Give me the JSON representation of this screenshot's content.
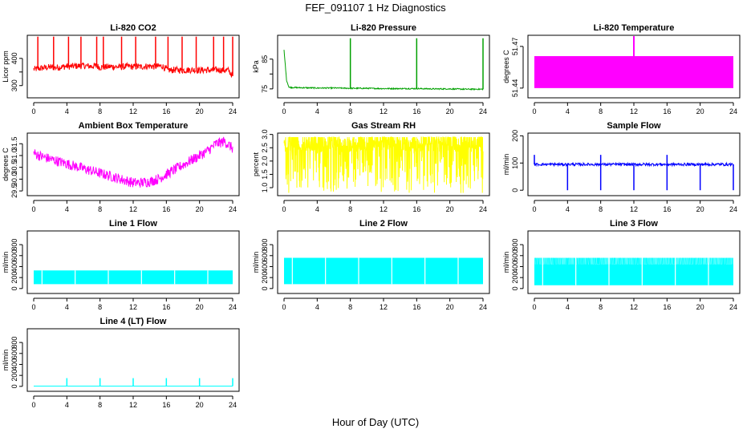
{
  "figure": {
    "title": "FEF_091107  1 Hz Diagnostics",
    "xlabel": "Hour of Day (UTC)"
  },
  "chart_data": [
    {
      "type": "line",
      "title": "Li-820 CO2",
      "ylabel": "Licor ppm",
      "color": "#ff0000",
      "xlim": [
        0,
        24
      ],
      "ylim": [
        255,
        485
      ],
      "xticks": [
        0,
        4,
        8,
        12,
        16,
        20,
        24
      ],
      "yticks": [
        300,
        350,
        400
      ],
      "ytick_labels": [
        "300",
        "",
        "400"
      ],
      "series": [
        {
          "x": [
            0,
            0.5,
            1,
            1.5,
            2,
            2.5,
            3,
            3.5,
            4,
            4.5,
            5,
            5.5,
            6,
            6.5,
            7,
            7.5,
            8,
            8.5,
            9,
            9.5,
            10,
            10.5,
            11,
            11.5,
            12,
            12.5,
            13,
            13.5,
            14,
            14.5,
            15,
            15.5,
            16,
            16.5,
            17,
            17.5,
            18,
            18.5,
            19,
            19.5,
            20,
            20.5,
            21,
            21.5,
            22,
            22.5,
            23,
            23.5,
            24
          ],
          "y": [
            360,
            362,
            365,
            366,
            368,
            366,
            367,
            369,
            371,
            370,
            372,
            372,
            373,
            372,
            371,
            373,
            367,
            368,
            369,
            370,
            369,
            368,
            370,
            371,
            369,
            370,
            369,
            371,
            372,
            370,
            371,
            372,
            360,
            356,
            358,
            357,
            356,
            357,
            358,
            357,
            356,
            357,
            357,
            356,
            358,
            357,
            357,
            356,
            335
          ],
          "noise": 12,
          "spikes_x": [
            0.5,
            2.4,
            4.2,
            5.7,
            7.6,
            8.4,
            10.6,
            12.3,
            14.7,
            16.2,
            17.9,
            19.6,
            21.7,
            22.9,
            24.0
          ],
          "spike_y": 480
        }
      ]
    },
    {
      "type": "line",
      "title": "Li-820 Pressure",
      "ylabel": "kPa",
      "color": "#00a000",
      "xlim": [
        0,
        24
      ],
      "ylim": [
        72,
        93
      ],
      "xticks": [
        0,
        4,
        8,
        12,
        16,
        20,
        24
      ],
      "yticks": [
        75,
        80,
        85
      ],
      "ytick_labels": [
        "75",
        "",
        "85"
      ],
      "series": [
        {
          "x": [
            0,
            0.3,
            0.6,
            2,
            4,
            6,
            8,
            10,
            12,
            14,
            16,
            18,
            20,
            22,
            24
          ],
          "y": [
            88,
            78,
            75.5,
            75.4,
            75.3,
            75.3,
            75.2,
            75.2,
            75.1,
            75.1,
            75.1,
            75.0,
            75.0,
            74.9,
            74.9
          ],
          "noise": 0.2,
          "spikes_x": [
            8,
            16,
            24
          ],
          "spike_y": 92
        }
      ]
    },
    {
      "type": "area",
      "title": "Li-820 Temperature",
      "ylabel": "degrees C",
      "color": "#ff00ff",
      "xlim": [
        0,
        24
      ],
      "ylim": [
        51.433,
        51.478
      ],
      "xticks": [
        0,
        4,
        8,
        12,
        16,
        20,
        24
      ],
      "yticks": [
        51.44,
        51.47
      ],
      "ytick_labels": [
        "51.44",
        "51.47"
      ],
      "series": [
        {
          "x": [
            0,
            24
          ],
          "y_low": 51.44,
          "y_high": 51.463,
          "spikes_x": [
            12
          ],
          "spike_y": 51.478
        }
      ]
    },
    {
      "type": "line",
      "title": "Ambient Box Temperature",
      "ylabel": "degrees C",
      "color": "#ff00ff",
      "xlim": [
        0,
        24
      ],
      "ylim": [
        29.3,
        31.95
      ],
      "xticks": [
        0,
        4,
        8,
        12,
        16,
        20,
        24
      ],
      "yticks": [
        29.5,
        30.0,
        30.5,
        31.0,
        31.5
      ],
      "ytick_labels": [
        "29.5",
        "30.0",
        "30.5",
        "31.0",
        "31.5"
      ],
      "series": [
        {
          "x": [
            0,
            1,
            2,
            3,
            4,
            5,
            6,
            7,
            8,
            9,
            10,
            11,
            12,
            13,
            14,
            15,
            16,
            17,
            18,
            19,
            20,
            21,
            22,
            23,
            24
          ],
          "y": [
            31.1,
            30.95,
            30.85,
            30.75,
            30.65,
            30.55,
            30.45,
            30.35,
            30.25,
            30.15,
            30.05,
            29.95,
            29.85,
            29.85,
            29.9,
            30.0,
            30.2,
            30.4,
            30.6,
            30.8,
            31.0,
            31.2,
            31.5,
            31.6,
            31.3
          ],
          "noise": 0.22
        }
      ]
    },
    {
      "type": "line",
      "title": "Gas Stream RH",
      "ylabel": "percent",
      "color": "#ffff00",
      "xlim": [
        0,
        24
      ],
      "ylim": [
        0.7,
        3.05
      ],
      "xticks": [
        0,
        4,
        8,
        12,
        16,
        20,
        24
      ],
      "yticks": [
        1.0,
        1.5,
        2.0,
        2.5,
        3.0
      ],
      "ytick_labels": [
        "1.0",
        "1.5",
        "2.0",
        "2.5",
        "3.0"
      ],
      "series": [
        {
          "x": [
            0,
            24
          ],
          "y_low": 0.8,
          "y_high": 2.9,
          "y_mid": 2.6
        }
      ]
    },
    {
      "type": "line",
      "title": "Sample Flow",
      "ylabel": "ml/min",
      "color": "#0000ff",
      "xlim": [
        0,
        24
      ],
      "ylim": [
        -20,
        210
      ],
      "xticks": [
        0,
        4,
        8,
        12,
        16,
        20,
        24
      ],
      "yticks": [
        0,
        100,
        200
      ],
      "ytick_labels": [
        "0",
        "100",
        "200"
      ],
      "series": [
        {
          "x": [
            0,
            24
          ],
          "y": 95,
          "noise": 5,
          "dips_x": [
            4,
            8,
            12,
            16,
            20,
            24
          ],
          "spikes_x": [
            0,
            8,
            16
          ],
          "spike_y": 130
        }
      ]
    },
    {
      "type": "area",
      "title": "Line 1 Flow",
      "ylabel": "ml/min",
      "color": "#00ffff",
      "xlim": [
        0,
        24
      ],
      "ylim": [
        -90,
        1050
      ],
      "xticks": [
        0,
        4,
        8,
        12,
        16,
        20,
        24
      ],
      "yticks": [
        0,
        200,
        400,
        600,
        800
      ],
      "ytick_labels": [
        "0",
        "200",
        "400",
        "600",
        "800"
      ],
      "series": [
        {
          "x": [
            0,
            24
          ],
          "y_low": 80,
          "y_high": 330
        }
      ]
    },
    {
      "type": "area",
      "title": "Line 2 Flow",
      "ylabel": "ml/min",
      "color": "#00ffff",
      "xlim": [
        0,
        24
      ],
      "ylim": [
        -90,
        1050
      ],
      "xticks": [
        0,
        4,
        8,
        12,
        16,
        20,
        24
      ],
      "yticks": [
        0,
        200,
        400,
        600,
        800
      ],
      "ytick_labels": [
        "0",
        "200",
        "400",
        "600",
        "800"
      ],
      "series": [
        {
          "x": [
            0,
            24
          ],
          "y_low": 80,
          "y_high": 560
        }
      ]
    },
    {
      "type": "area",
      "title": "Line 3 Flow",
      "ylabel": "ml/min",
      "color": "#00ffff",
      "xlim": [
        0,
        24
      ],
      "ylim": [
        -90,
        1050
      ],
      "xticks": [
        0,
        4,
        8,
        12,
        16,
        20,
        24
      ],
      "yticks": [
        0,
        200,
        400,
        600,
        800
      ],
      "ytick_labels": [
        "0",
        "200",
        "400",
        "600",
        "800"
      ],
      "series": [
        {
          "x": [
            0,
            24
          ],
          "y_low": 60,
          "y_high": 560,
          "y_mid": 440
        }
      ]
    },
    {
      "type": "line",
      "title": "Line 4 (LT) Flow",
      "ylabel": "ml/min",
      "color": "#00ffff",
      "xlim": [
        0,
        24
      ],
      "ylim": [
        -90,
        1050
      ],
      "xticks": [
        0,
        4,
        8,
        12,
        16,
        20,
        24
      ],
      "yticks": [
        0,
        200,
        400,
        600,
        800
      ],
      "ytick_labels": [
        "0",
        "200",
        "400",
        "600",
        "800"
      ],
      "series": [
        {
          "x": [
            0,
            24
          ],
          "y": 5,
          "spikes_x": [
            4,
            8,
            12,
            16,
            20,
            24
          ],
          "spike_y": 150
        }
      ]
    }
  ]
}
